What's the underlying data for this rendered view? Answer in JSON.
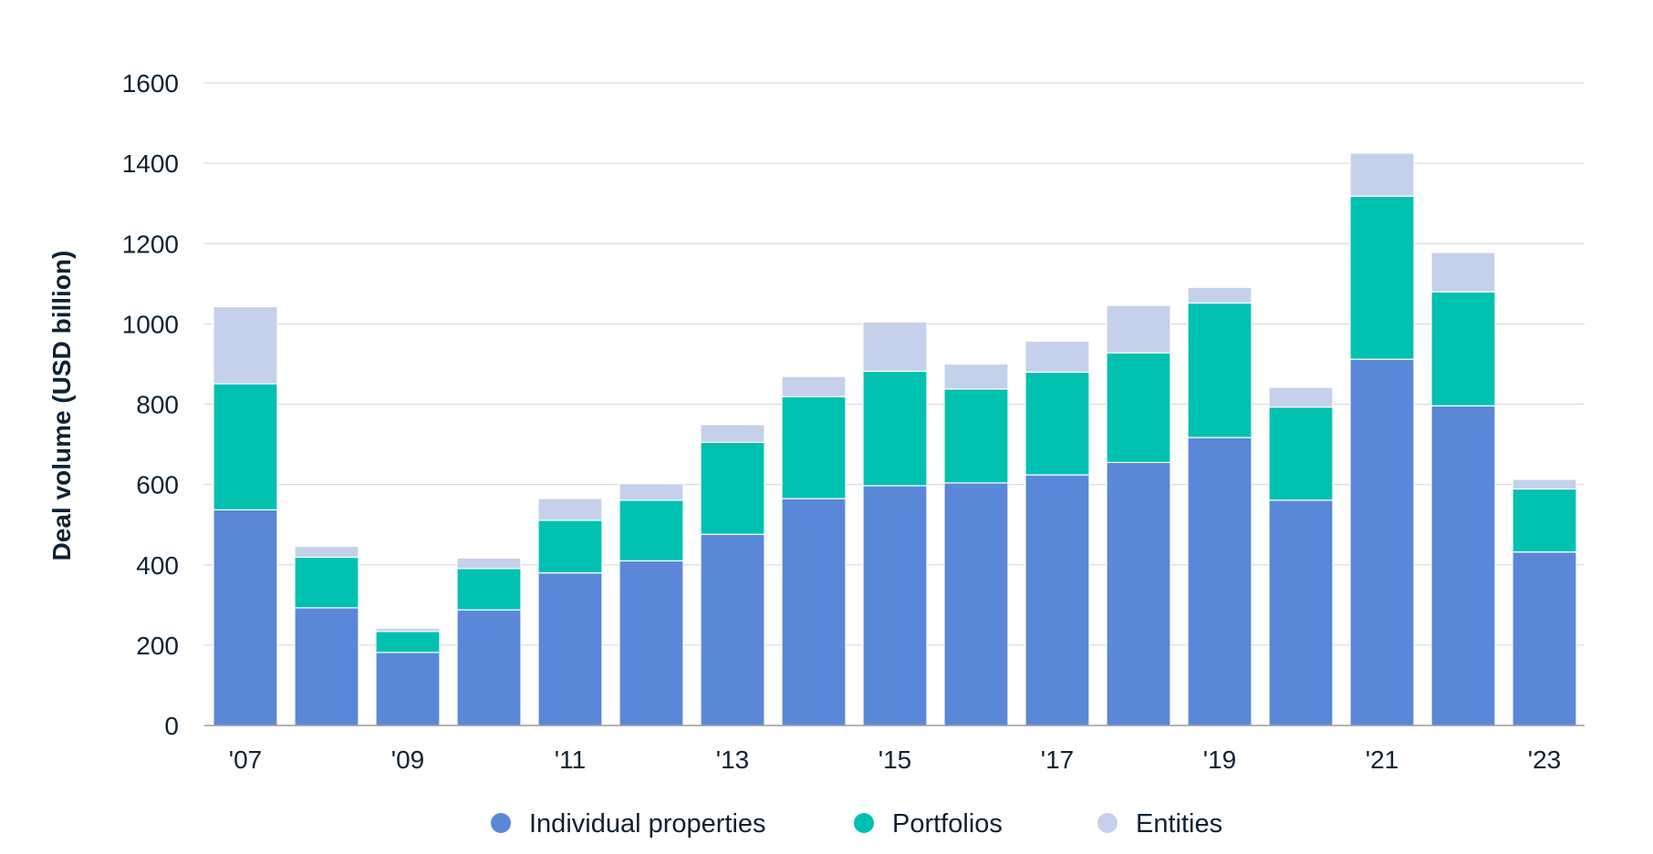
{
  "chart_data": {
    "type": "bar",
    "stacked": true,
    "title": "",
    "xlabel": "",
    "ylabel": "Deal volume (USD billion)",
    "ylim": [
      0,
      1600
    ],
    "yticks": [
      0,
      200,
      400,
      600,
      800,
      1000,
      1200,
      1400,
      1600
    ],
    "grid": true,
    "legend_position": "bottom-center",
    "categories": [
      "2007",
      "2008",
      "2009",
      "2010",
      "2011",
      "2012",
      "2013",
      "2014",
      "2015",
      "2016",
      "2017",
      "2018",
      "2019",
      "2020",
      "2021",
      "2022",
      "2023"
    ],
    "x_tick_labels": [
      "'07",
      "",
      "'09",
      "",
      "'11",
      "",
      "'13",
      "",
      "'15",
      "",
      "'17",
      "",
      "'19",
      "",
      "'21",
      "",
      "'23"
    ],
    "series": [
      {
        "name": "Individual properties",
        "color": "#5b87d9",
        "values": [
          537,
          293,
          182,
          288,
          380,
          410,
          476,
          565,
          597,
          604,
          624,
          655,
          717,
          561,
          912,
          796,
          432
        ]
      },
      {
        "name": "Portfolios",
        "color": "#00c1b0",
        "values": [
          314,
          126,
          52,
          103,
          131,
          151,
          229,
          254,
          285,
          234,
          256,
          273,
          335,
          232,
          406,
          284,
          157
        ]
      },
      {
        "name": "Entities",
        "color": "#c5d0ea",
        "values": [
          192,
          27,
          8,
          26,
          54,
          41,
          44,
          50,
          123,
          62,
          77,
          118,
          39,
          49,
          107,
          98,
          24
        ]
      }
    ]
  }
}
